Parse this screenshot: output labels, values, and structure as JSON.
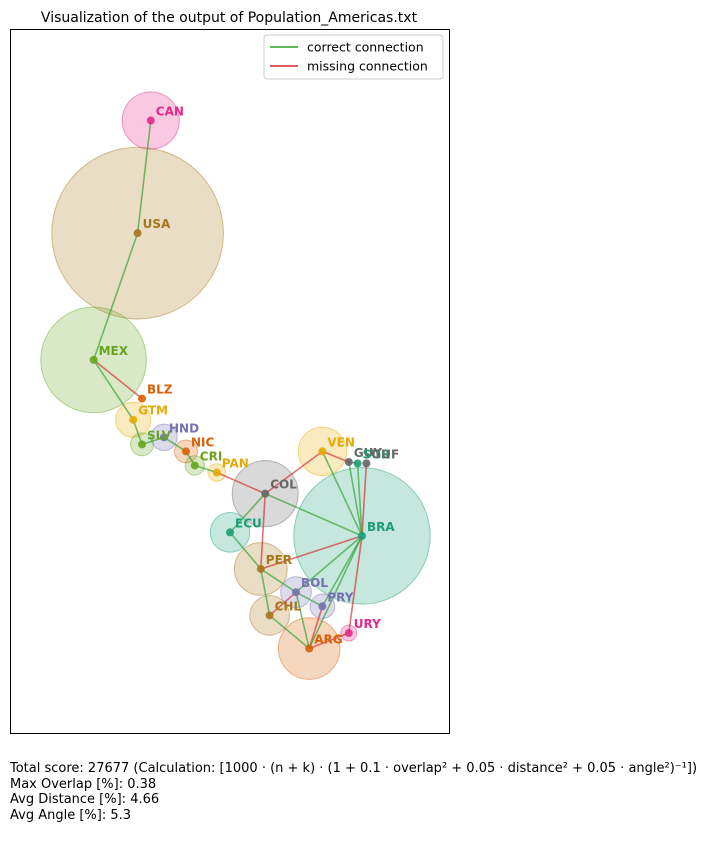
{
  "chart_data": {
    "type": "scatter",
    "title": "Visualization of the output of Population_Americas.txt",
    "legend": {
      "placement": "top-right",
      "entries": [
        {
          "label": "correct connection",
          "color": "#2ca02c"
        },
        {
          "label": "missing connection",
          "color": "#d62728"
        }
      ]
    },
    "countries": [
      {
        "code": "CAN",
        "x": 0.32,
        "y": 0.87,
        "r": 0.065,
        "color": "#e7298a"
      },
      {
        "code": "USA",
        "x": 0.29,
        "y": 0.71,
        "r": 0.195,
        "color": "#a6761d"
      },
      {
        "code": "MEX",
        "x": 0.19,
        "y": 0.53,
        "r": 0.12,
        "color": "#66a61e"
      },
      {
        "code": "BLZ",
        "x": 0.3,
        "y": 0.475,
        "r": 0.0,
        "color": "#d95f02"
      },
      {
        "code": "GTM",
        "x": 0.28,
        "y": 0.445,
        "r": 0.04,
        "color": "#e6ab02"
      },
      {
        "code": "SLV",
        "x": 0.3,
        "y": 0.41,
        "r": 0.026,
        "color": "#66a61e"
      },
      {
        "code": "HND",
        "x": 0.35,
        "y": 0.42,
        "r": 0.03,
        "color": "#7570b3"
      },
      {
        "code": "NIC",
        "x": 0.4,
        "y": 0.4,
        "r": 0.026,
        "color": "#d95f02"
      },
      {
        "code": "CRI",
        "x": 0.42,
        "y": 0.38,
        "r": 0.022,
        "color": "#66a61e"
      },
      {
        "code": "PAN",
        "x": 0.47,
        "y": 0.37,
        "r": 0.02,
        "color": "#e6ab02"
      },
      {
        "code": "COL",
        "x": 0.58,
        "y": 0.34,
        "r": 0.075,
        "color": "#666666"
      },
      {
        "code": "ECU",
        "x": 0.5,
        "y": 0.285,
        "r": 0.045,
        "color": "#1b9e77"
      },
      {
        "code": "VEN",
        "x": 0.71,
        "y": 0.4,
        "r": 0.055,
        "color": "#e6ab02"
      },
      {
        "code": "GUY",
        "x": 0.77,
        "y": 0.385,
        "r": 0.0,
        "color": "#666666"
      },
      {
        "code": "SUR",
        "x": 0.79,
        "y": 0.383,
        "r": 0.0,
        "color": "#1b9e77"
      },
      {
        "code": "GUF",
        "x": 0.81,
        "y": 0.383,
        "r": 0.0,
        "color": "#666666"
      },
      {
        "code": "BRA",
        "x": 0.8,
        "y": 0.28,
        "r": 0.155,
        "color": "#1b9e77"
      },
      {
        "code": "PER",
        "x": 0.57,
        "y": 0.233,
        "r": 0.06,
        "color": "#a6761d"
      },
      {
        "code": "BOL",
        "x": 0.65,
        "y": 0.2,
        "r": 0.035,
        "color": "#7570b3"
      },
      {
        "code": "PRY",
        "x": 0.71,
        "y": 0.18,
        "r": 0.028,
        "color": "#7570b3"
      },
      {
        "code": "CHL",
        "x": 0.59,
        "y": 0.167,
        "r": 0.045,
        "color": "#a6761d"
      },
      {
        "code": "URY",
        "x": 0.77,
        "y": 0.142,
        "r": 0.018,
        "color": "#e7298a"
      },
      {
        "code": "ARG",
        "x": 0.68,
        "y": 0.12,
        "r": 0.07,
        "color": "#d95f02"
      }
    ],
    "correct_connections": [
      [
        "CAN",
        "USA"
      ],
      [
        "USA",
        "MEX"
      ],
      [
        "MEX",
        "GTM"
      ],
      [
        "GTM",
        "SLV"
      ],
      [
        "SLV",
        "HND"
      ],
      [
        "HND",
        "NIC"
      ],
      [
        "NIC",
        "CRI"
      ],
      [
        "CRI",
        "PAN"
      ],
      [
        "COL",
        "ECU"
      ],
      [
        "COL",
        "BRA"
      ],
      [
        "ECU",
        "PER"
      ],
      [
        "VEN",
        "BRA"
      ],
      [
        "GUY",
        "BRA"
      ],
      [
        "SUR",
        "BRA"
      ],
      [
        "PER",
        "CHL"
      ],
      [
        "PER",
        "BOL"
      ],
      [
        "BOL",
        "PRY"
      ],
      [
        "BOL",
        "ARG"
      ],
      [
        "CHL",
        "ARG"
      ],
      [
        "BRA",
        "PRY"
      ],
      [
        "BRA",
        "ARG"
      ],
      [
        "BRA",
        "BOL"
      ]
    ],
    "missing_connections": [
      [
        "MEX",
        "BLZ"
      ],
      [
        "PAN",
        "COL"
      ],
      [
        "COL",
        "VEN"
      ],
      [
        "COL",
        "PER"
      ],
      [
        "GUF",
        "BRA"
      ],
      [
        "PER",
        "BRA"
      ],
      [
        "BOL",
        "CHL"
      ],
      [
        "PRY",
        "ARG"
      ],
      [
        "ARG",
        "URY"
      ],
      [
        "BRA",
        "URY"
      ],
      [
        "GUY",
        "VEN"
      ],
      [
        "SUR",
        "GUY"
      ]
    ]
  },
  "footer": {
    "score_line": "Total score: 27677  (Calculation: [1000 · (n + k) · (1 + 0.1 · overlap² + 0.05 · distance² + 0.05 · angle²)⁻¹])",
    "max_overlap": "Max Overlap [%]: 0.38",
    "avg_distance": "Avg Distance [%]: 4.66",
    "avg_angle": "Avg Angle [%]: 5.3"
  }
}
